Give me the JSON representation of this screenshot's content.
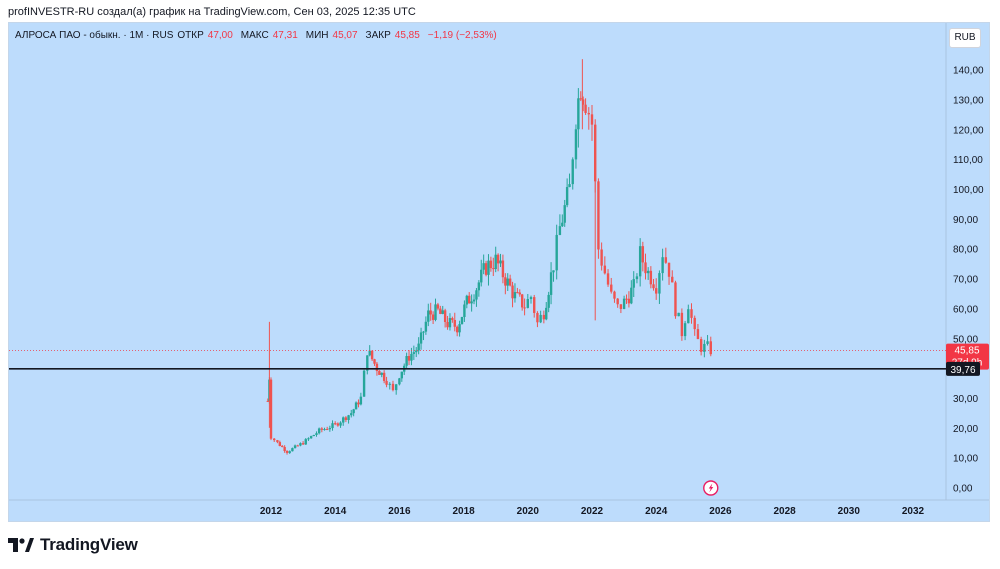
{
  "header": {
    "caption": "profINVESTR-RU создал(а) график на TradingView.com, Сен 03, 2025 12:35 UTC"
  },
  "legend": {
    "symbol": "АЛРОСА ПАО - обыкн. · 1M · RUS",
    "open_label": "ОТКР",
    "open_value": "47,00",
    "high_label": "МАКС",
    "high_value": "47,31",
    "low_label": "МИН",
    "low_value": "45,07",
    "close_label": "ЗАКР",
    "close_value": "45,85",
    "change": "−1,19 (−2,53%)"
  },
  "currency_button": "RUB",
  "footer": {
    "brand": "TradingView"
  },
  "colors": {
    "background": "#bddcfc",
    "up": "#26a69a",
    "down": "#ef5350",
    "price_tag": "#f23645",
    "support_tag": "#131722"
  },
  "chart_data": {
    "type": "candlestick",
    "timeframe": "1M",
    "currency": "RUB",
    "y_ticks": [
      "0,00",
      "10,00",
      "20,00",
      "30,00",
      "40,00",
      "50,00",
      "60,00",
      "70,00",
      "80,00",
      "90,00",
      "100,00",
      "110,00",
      "120,00",
      "130,00",
      "140,00"
    ],
    "x_ticks": [
      "2012",
      "2014",
      "2016",
      "2018",
      "2020",
      "2022",
      "2024",
      "2026",
      "2028",
      "2030",
      "2032"
    ],
    "ylim": [
      0,
      140
    ],
    "xlim": [
      2011.2,
      2032.8
    ],
    "last_price": {
      "value": 45.85,
      "label": "45,85",
      "countdown": "27d 9h"
    },
    "horizontal_line": {
      "value": 39.76,
      "label": "39,76"
    },
    "series": [
      {
        "t": 2011.9,
        "close": 29
      },
      {
        "t": 2011.95,
        "close": 37
      },
      {
        "t": 2012.0,
        "close": 17
      },
      {
        "t": 2012.2,
        "close": 15
      },
      {
        "t": 2012.5,
        "close": 12
      },
      {
        "t": 2013.0,
        "close": 15
      },
      {
        "t": 2013.5,
        "close": 19
      },
      {
        "t": 2014.0,
        "close": 21
      },
      {
        "t": 2014.5,
        "close": 25
      },
      {
        "t": 2014.8,
        "close": 30
      },
      {
        "t": 2015.0,
        "close": 46
      },
      {
        "t": 2015.3,
        "close": 40
      },
      {
        "t": 2015.6,
        "close": 36
      },
      {
        "t": 2015.8,
        "close": 32
      },
      {
        "t": 2016.0,
        "close": 38
      },
      {
        "t": 2016.3,
        "close": 44
      },
      {
        "t": 2016.6,
        "close": 47
      },
      {
        "t": 2016.9,
        "close": 58
      },
      {
        "t": 2017.2,
        "close": 59
      },
      {
        "t": 2017.5,
        "close": 55
      },
      {
        "t": 2017.8,
        "close": 54
      },
      {
        "t": 2018.1,
        "close": 62
      },
      {
        "t": 2018.4,
        "close": 67
      },
      {
        "t": 2018.7,
        "close": 74
      },
      {
        "t": 2019.0,
        "close": 76
      },
      {
        "t": 2019.3,
        "close": 70
      },
      {
        "t": 2019.6,
        "close": 64
      },
      {
        "t": 2019.9,
        "close": 61
      },
      {
        "t": 2020.1,
        "close": 64
      },
      {
        "t": 2020.3,
        "close": 55
      },
      {
        "t": 2020.5,
        "close": 59
      },
      {
        "t": 2020.8,
        "close": 75
      },
      {
        "t": 2021.0,
        "close": 87
      },
      {
        "t": 2021.3,
        "close": 100
      },
      {
        "t": 2021.5,
        "close": 125
      },
      {
        "t": 2021.65,
        "close": 135
      },
      {
        "t": 2021.8,
        "close": 130
      },
      {
        "t": 2022.0,
        "close": 122
      },
      {
        "t": 2022.2,
        "close": 80
      },
      {
        "t": 2022.4,
        "close": 72
      },
      {
        "t": 2022.6,
        "close": 64
      },
      {
        "t": 2022.8,
        "close": 60
      },
      {
        "t": 2023.0,
        "close": 62
      },
      {
        "t": 2023.3,
        "close": 67
      },
      {
        "t": 2023.5,
        "close": 78
      },
      {
        "t": 2023.75,
        "close": 72
      },
      {
        "t": 2024.0,
        "close": 68
      },
      {
        "t": 2024.2,
        "close": 79
      },
      {
        "t": 2024.4,
        "close": 73
      },
      {
        "t": 2024.6,
        "close": 60
      },
      {
        "t": 2024.8,
        "close": 52
      },
      {
        "t": 2025.0,
        "close": 62
      },
      {
        "t": 2025.2,
        "close": 51
      },
      {
        "t": 2025.4,
        "close": 47
      },
      {
        "t": 2025.6,
        "close": 47
      },
      {
        "t": 2025.7,
        "close": 46
      }
    ]
  }
}
